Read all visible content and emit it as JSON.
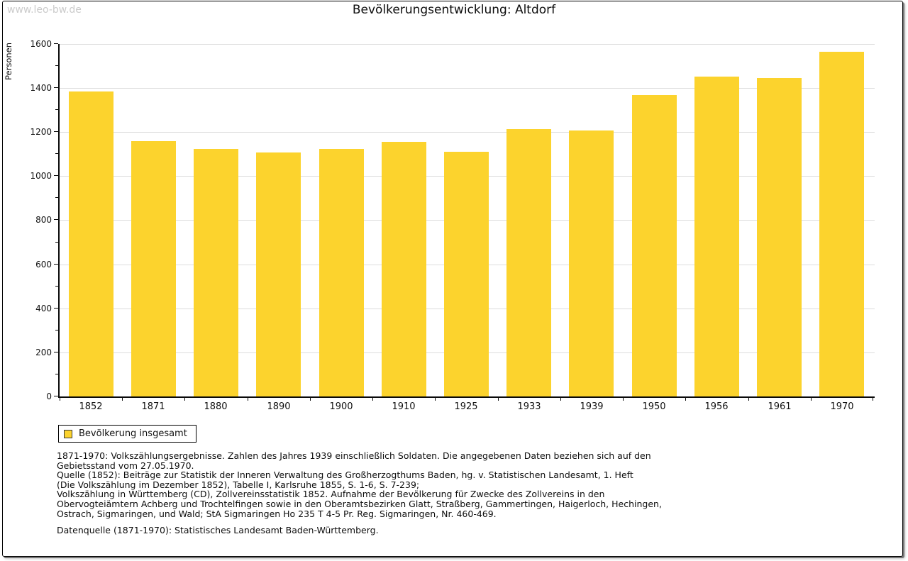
{
  "page": {
    "watermark": "www.leo-bw.de"
  },
  "chart_data": {
    "type": "bar",
    "title": "Bevölkerungsentwicklung: Altdorf",
    "xlabel": "",
    "ylabel": "Personen",
    "categories": [
      "1852",
      "1871",
      "1880",
      "1890",
      "1900",
      "1910",
      "1925",
      "1933",
      "1939",
      "1950",
      "1956",
      "1961",
      "1970"
    ],
    "series": [
      {
        "name": "Bevölkerung insgesamt",
        "color": "#fcd32d",
        "values": [
          1385,
          1160,
          1125,
          1108,
          1125,
          1156,
          1111,
          1213,
          1206,
          1368,
          1451,
          1447,
          1565
        ]
      }
    ],
    "ylim": [
      0,
      1600
    ],
    "y_tick_step": 200,
    "y_minor_tick_step": 100,
    "grid": "horizontal",
    "legend_position": "bottom-left"
  },
  "footnotes": [
    "1871-1970: Volkszählungsergebnisse. Zahlen des Jahres 1939 einschließlich Soldaten. Die angegebenen Daten beziehen sich auf den",
    "Gebietsstand vom 27.05.1970.",
    "Quelle (1852): Beiträge zur Statistik der Inneren Verwaltung des Großherzogthums Baden, hg. v. Statistischen Landesamt, 1. Heft",
    "(Die Volkszählung im Dezember 1852), Tabelle I, Karlsruhe 1855, S. 1-6, S. 7-239;",
    "Volkszählung in Württemberg (CD), Zollvereinsstatistik 1852. Aufnahme der Bevölkerung für Zwecke des Zollvereins in den",
    "Obervogteiämtern Achberg und Trochtelfingen sowie in den Oberamtsbezirken Glatt, Straßberg, Gammertingen, Haigerloch, Hechingen,",
    "Ostrach, Sigmaringen, und Wald; StA Sigmaringen Ho 235 T 4-5 Pr. Reg. Sigmaringen, Nr. 460-469."
  ],
  "datasource": "Datenquelle (1871-1970): Statistisches Landesamt Baden-Württemberg."
}
